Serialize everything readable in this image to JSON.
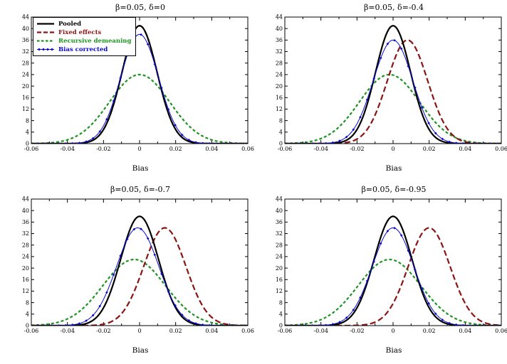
{
  "figure": {
    "background": "#ffffff",
    "axis_color": "#000000"
  },
  "legend": {
    "items": [
      {
        "label": "Pooled",
        "style": "solid",
        "color": "#000000"
      },
      {
        "label": "Fixed effects",
        "style": "dashed",
        "color": "#8b1515"
      },
      {
        "label": "Recursive demeaning",
        "style": "dashed-short",
        "color": "#1f9422"
      },
      {
        "label": "Bias corrected",
        "style": "diamond",
        "color": "#0b0bd0"
      }
    ]
  },
  "chart_data": [
    {
      "type": "line",
      "title": "β=0.05,  δ=0",
      "xlabel": "Bias",
      "xlim": [
        -0.06,
        0.06
      ],
      "ylim": [
        0,
        44
      ],
      "xticks": [
        -0.06,
        -0.04,
        -0.02,
        0,
        0.02,
        0.04,
        0.06
      ],
      "xticks_minor": [
        -0.05,
        -0.03,
        -0.01,
        0.01,
        0.03,
        0.05
      ],
      "yticks": [
        0,
        4,
        8,
        12,
        16,
        20,
        24,
        28,
        32,
        36,
        40,
        44
      ],
      "grid": false,
      "legend_position": "top-left",
      "series": [
        {
          "name": "Pooled",
          "color": "#000000",
          "style": "solid",
          "curve": "gaussian",
          "mean": 0.0,
          "peak": 41,
          "sigma": 0.0097
        },
        {
          "name": "Fixed effects",
          "color": "#8b1515",
          "style": "dashed",
          "curve": "gaussian",
          "mean": 0.0,
          "peak": 41,
          "sigma": 0.0097
        },
        {
          "name": "Recursive demeaning",
          "color": "#1f9422",
          "style": "dashed-short",
          "curve": "gaussian",
          "mean": 0.0,
          "peak": 24,
          "sigma": 0.0166
        },
        {
          "name": "Bias corrected",
          "color": "#0b0bd0",
          "style": "diamond",
          "curve": "gaussian",
          "mean": 0.0,
          "peak": 38,
          "sigma": 0.0105
        }
      ]
    },
    {
      "type": "line",
      "title": "β=0.05,  δ=-0.4",
      "xlabel": "Bias",
      "xlim": [
        -0.06,
        0.06
      ],
      "ylim": [
        0,
        44
      ],
      "xticks": [
        -0.06,
        -0.04,
        -0.02,
        0,
        0.02,
        0.04,
        0.06
      ],
      "xticks_minor": [
        -0.05,
        -0.03,
        -0.01,
        0.01,
        0.03,
        0.05
      ],
      "yticks": [
        0,
        4,
        8,
        12,
        16,
        20,
        24,
        28,
        32,
        36,
        40,
        44
      ],
      "grid": false,
      "series": [
        {
          "name": "Pooled",
          "color": "#000000",
          "style": "solid",
          "curve": "gaussian",
          "mean": 0.0,
          "peak": 41,
          "sigma": 0.0097
        },
        {
          "name": "Fixed effects",
          "color": "#8b1515",
          "style": "dashed",
          "curve": "gaussian",
          "mean": 0.008,
          "peak": 36,
          "sigma": 0.0112
        },
        {
          "name": "Recursive demeaning",
          "color": "#1f9422",
          "style": "dashed-short",
          "curve": "gaussian",
          "mean": -0.002,
          "peak": 24,
          "sigma": 0.0166
        },
        {
          "name": "Bias corrected",
          "color": "#0b0bd0",
          "style": "diamond",
          "curve": "gaussian",
          "mean": 0.0,
          "peak": 36,
          "sigma": 0.011
        }
      ]
    },
    {
      "type": "line",
      "title": "β=0.05,  δ=-0.7",
      "xlabel": "Bias",
      "xlim": [
        -0.06,
        0.06
      ],
      "ylim": [
        0,
        44
      ],
      "xticks": [
        -0.06,
        -0.04,
        -0.02,
        0,
        0.02,
        0.04,
        0.06
      ],
      "xticks_minor": [
        -0.05,
        -0.03,
        -0.01,
        0.01,
        0.03,
        0.05
      ],
      "yticks": [
        0,
        4,
        8,
        12,
        16,
        20,
        24,
        28,
        32,
        36,
        40,
        44
      ],
      "grid": false,
      "series": [
        {
          "name": "Pooled",
          "color": "#000000",
          "style": "solid",
          "curve": "gaussian",
          "mean": 0.0,
          "peak": 38,
          "sigma": 0.0105
        },
        {
          "name": "Fixed effects",
          "color": "#8b1515",
          "style": "dashed",
          "curve": "gaussian",
          "mean": 0.014,
          "peak": 34,
          "sigma": 0.0117
        },
        {
          "name": "Recursive demeaning",
          "color": "#1f9422",
          "style": "dashed-short",
          "curve": "gaussian",
          "mean": -0.003,
          "peak": 23,
          "sigma": 0.0173
        },
        {
          "name": "Bias corrected",
          "color": "#0b0bd0",
          "style": "diamond",
          "curve": "gaussian",
          "mean": -0.001,
          "peak": 34,
          "sigma": 0.0117
        }
      ]
    },
    {
      "type": "line",
      "title": "β=0.05,  δ=-0.95",
      "xlabel": "Bias",
      "xlim": [
        -0.06,
        0.06
      ],
      "ylim": [
        0,
        44
      ],
      "xticks": [
        -0.06,
        -0.04,
        -0.02,
        0,
        0.02,
        0.04,
        0.06
      ],
      "xticks_minor": [
        -0.05,
        -0.03,
        -0.01,
        0.01,
        0.03,
        0.05
      ],
      "yticks": [
        0,
        4,
        8,
        12,
        16,
        20,
        24,
        28,
        32,
        36,
        40,
        44
      ],
      "grid": false,
      "series": [
        {
          "name": "Pooled",
          "color": "#000000",
          "style": "solid",
          "curve": "gaussian",
          "mean": 0.0,
          "peak": 38,
          "sigma": 0.0105
        },
        {
          "name": "Fixed effects",
          "color": "#8b1515",
          "style": "dashed",
          "curve": "gaussian",
          "mean": 0.02,
          "peak": 34,
          "sigma": 0.0116
        },
        {
          "name": "Recursive demeaning",
          "color": "#1f9422",
          "style": "dashed-short",
          "curve": "gaussian",
          "mean": -0.002,
          "peak": 23,
          "sigma": 0.0173
        },
        {
          "name": "Bias corrected",
          "color": "#0b0bd0",
          "style": "diamond",
          "curve": "gaussian",
          "mean": 0.0,
          "peak": 34,
          "sigma": 0.0115
        }
      ]
    }
  ]
}
